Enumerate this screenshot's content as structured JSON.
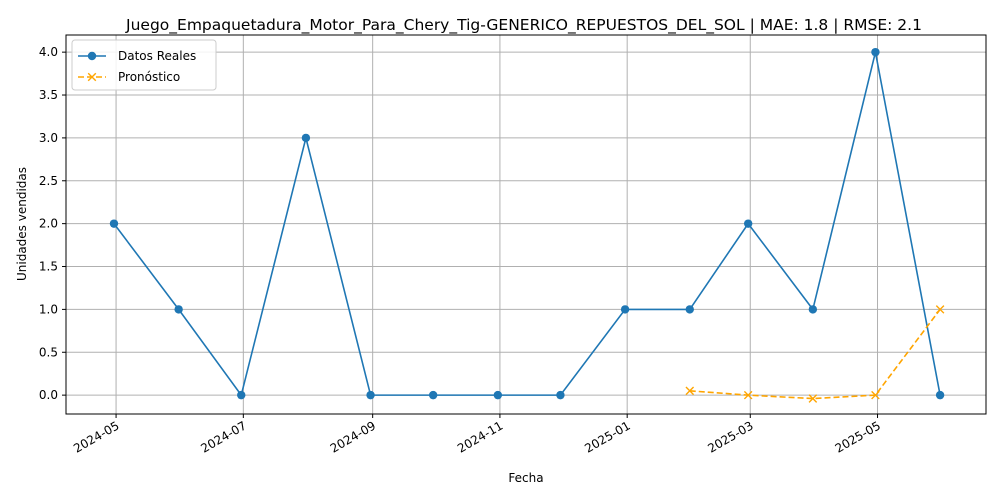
{
  "chart_data": {
    "type": "line",
    "title": "Juego_Empaquetadura_Motor_Para_Chery_Tig-GENERICO_REPUESTOS_DEL_SOL | MAE: 1.8 | RMSE: 2.1",
    "xlabel": "Fecha",
    "ylabel": "Unidades vendidas",
    "x_ticks": [
      "2024-05",
      "2024-07",
      "2024-09",
      "2024-11",
      "2025-01",
      "2025-03",
      "2025-05"
    ],
    "y_ticks": [
      "0.0",
      "0.5",
      "1.0",
      "1.5",
      "2.0",
      "2.5",
      "3.0",
      "3.5",
      "4.0"
    ],
    "xlim": [
      "2024-04-07",
      "2025-06-22"
    ],
    "ylim": [
      -0.22,
      4.2
    ],
    "grid": true,
    "legend_position": "top-left",
    "series": [
      {
        "name": "Datos Reales",
        "color": "#1f77b4",
        "marker": "circle",
        "linestyle": "solid",
        "x": [
          "2024-04-30",
          "2024-05-31",
          "2024-06-30",
          "2024-07-31",
          "2024-08-31",
          "2024-09-30",
          "2024-10-31",
          "2024-11-30",
          "2024-12-31",
          "2025-01-31",
          "2025-02-28",
          "2025-03-31",
          "2025-04-30",
          "2025-05-31"
        ],
        "values": [
          2,
          1,
          0,
          3,
          0,
          0,
          0,
          0,
          1,
          1,
          2,
          1,
          4,
          0
        ]
      },
      {
        "name": "Pronóstico",
        "color": "#ffa500",
        "marker": "x",
        "linestyle": "dashed",
        "x": [
          "2025-01-31",
          "2025-02-28",
          "2025-03-31",
          "2025-04-30",
          "2025-05-31"
        ],
        "values": [
          0.05,
          0.0,
          -0.04,
          0.0,
          1.0
        ]
      }
    ]
  }
}
